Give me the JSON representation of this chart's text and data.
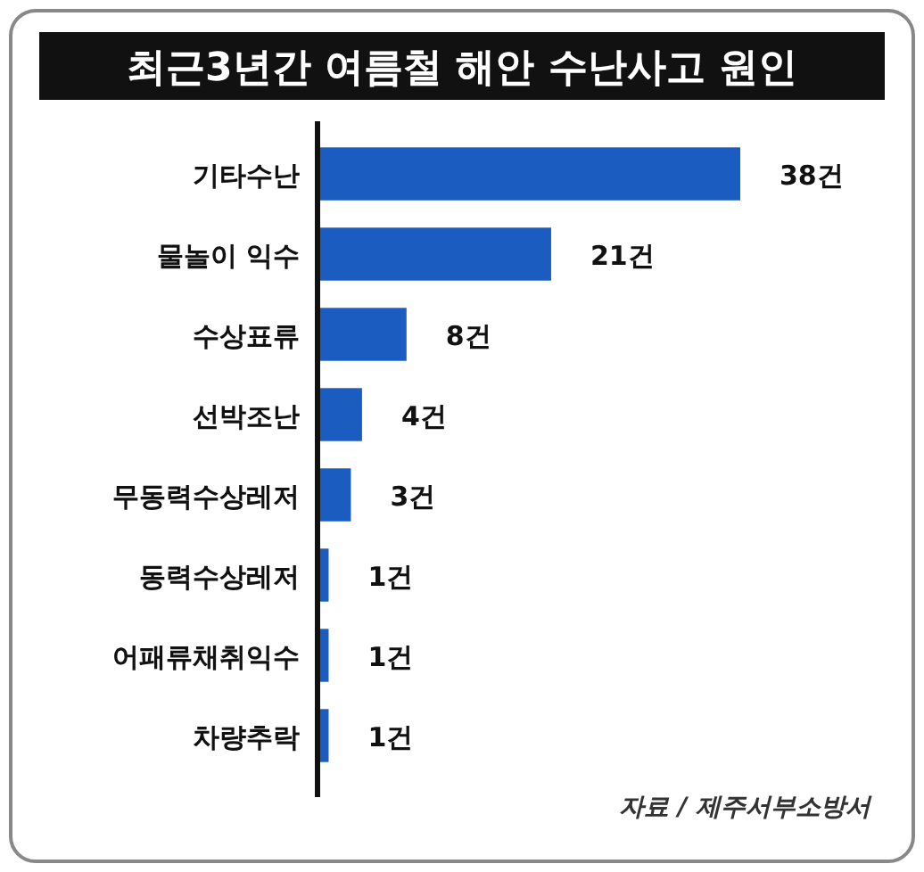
{
  "chart_data": {
    "type": "bar",
    "orientation": "horizontal",
    "title": "최근3년간 여름철 해안 수난사고 원인",
    "categories": [
      "기타수난",
      "물놀이 익수",
      "수상표류",
      "선박조난",
      "무동력수상레저",
      "동력수상레저",
      "어패류채취익수",
      "차량추락"
    ],
    "values": [
      38,
      21,
      8,
      4,
      3,
      1,
      1,
      1
    ],
    "value_labels": [
      "38건",
      "21건",
      "8건",
      "4건",
      "3건",
      "1건",
      "1건",
      "1건"
    ],
    "color": "#1a5cc0",
    "annotations": [
      "자료 / 제주서부소방서"
    ]
  }
}
